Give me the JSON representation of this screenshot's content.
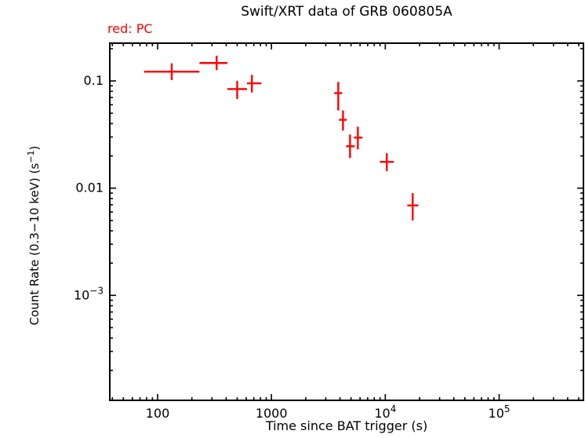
{
  "chart_data": {
    "type": "scatter",
    "title": "Swift/XRT data of GRB 060805A",
    "annotation": "red: PC",
    "xlabel": "Time since BAT trigger (s)",
    "ylabel_parts": [
      "Count Rate (0.3−10 keV) (s",
      "−1",
      ")"
    ],
    "xscale": "log",
    "yscale": "log",
    "xlim": [
      38,
      550000
    ],
    "ylim": [
      0.000105,
      0.225
    ],
    "grid": false,
    "frame_color": "#000000",
    "x_ticks": [
      {
        "v": 100,
        "text": "100"
      },
      {
        "v": 1000,
        "text": "1000"
      },
      {
        "v": 10000,
        "base": "10",
        "sup": "4"
      },
      {
        "v": 100000,
        "base": "10",
        "sup": "5"
      }
    ],
    "y_ticks": [
      {
        "v": 0.1,
        "text": "0.1"
      },
      {
        "v": 0.01,
        "text": "0.01"
      },
      {
        "v": 0.001,
        "base": "10",
        "sup": "−3"
      }
    ],
    "series": [
      {
        "name": "PC",
        "color": "#ff0000",
        "points": [
          {
            "x": 133,
            "x_lo": 76,
            "x_hi": 233,
            "y": 0.122,
            "y_lo": 0.102,
            "y_hi": 0.146
          },
          {
            "x": 330,
            "x_lo": 233,
            "x_hi": 410,
            "y": 0.147,
            "y_lo": 0.126,
            "y_hi": 0.172
          },
          {
            "x": 500,
            "x_lo": 410,
            "x_hi": 610,
            "y": 0.084,
            "y_lo": 0.068,
            "y_hi": 0.1
          },
          {
            "x": 673,
            "x_lo": 610,
            "x_hi": 815,
            "y": 0.095,
            "y_lo": 0.078,
            "y_hi": 0.114
          },
          {
            "x": 3860,
            "x_lo": 3560,
            "x_hi": 4180,
            "y": 0.077,
            "y_lo": 0.053,
            "y_hi": 0.098
          },
          {
            "x": 4250,
            "x_lo": 3920,
            "x_hi": 4590,
            "y": 0.0434,
            "y_lo": 0.0344,
            "y_hi": 0.053
          },
          {
            "x": 4900,
            "x_lo": 4520,
            "x_hi": 5380,
            "y": 0.0246,
            "y_lo": 0.0191,
            "y_hi": 0.0316
          },
          {
            "x": 5740,
            "x_lo": 5300,
            "x_hi": 6310,
            "y": 0.0296,
            "y_lo": 0.023,
            "y_hi": 0.0374
          },
          {
            "x": 10300,
            "x_lo": 8950,
            "x_hi": 11900,
            "y": 0.0176,
            "y_lo": 0.0144,
            "y_hi": 0.0212
          },
          {
            "x": 17400,
            "x_lo": 15600,
            "x_hi": 19500,
            "y": 0.0069,
            "y_lo": 0.005,
            "y_hi": 0.009
          }
        ]
      }
    ]
  }
}
